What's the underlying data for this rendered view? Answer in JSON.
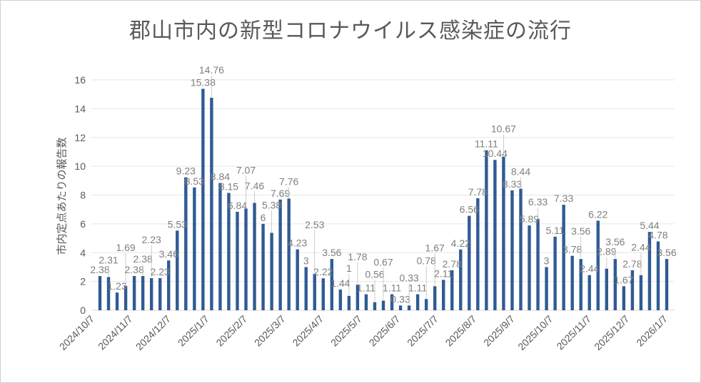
{
  "chart_data": {
    "type": "bar",
    "title": "郡山市内の新型コロナウイルス感染症の流行",
    "xlabel": "",
    "ylabel": "市内定点あたりの報告数",
    "ylim": [
      0,
      16
    ],
    "yticks": [
      0,
      2,
      4,
      6,
      8,
      10,
      12,
      14,
      16
    ],
    "grid": true,
    "bar_color": "#2f5b94",
    "xtick_labels": [
      "2024/10/7",
      "2024/11/7",
      "2024/12/7",
      "2025/1/7",
      "2025/2/7",
      "2025/3/7",
      "2025/4/7",
      "2025/5/7",
      "2025/6/7",
      "2025/7/7",
      "2025/8/7",
      "2025/9/7",
      "2025/10/7",
      "2025/11/7",
      "2025/12/7",
      "2026/1/7"
    ],
    "values": [
      2.38,
      2.31,
      1.23,
      1.69,
      2.38,
      2.38,
      2.23,
      2.23,
      3.46,
      5.53,
      9.23,
      8.53,
      15.38,
      14.76,
      8.84,
      8.15,
      6.84,
      7.07,
      7.46,
      6,
      5.38,
      7.69,
      7.76,
      4.23,
      3,
      2.53,
      2.22,
      3.56,
      1.44,
      1,
      1.78,
      1.11,
      0.56,
      0.67,
      1.11,
      0.33,
      0.33,
      1.11,
      0.78,
      1.67,
      2.11,
      2.78,
      4.22,
      6.56,
      7.78,
      11.11,
      10.44,
      10.67,
      8.33,
      8.44,
      5.89,
      6.33,
      3,
      5.11,
      7.33,
      3.78,
      3.56,
      2.44,
      6.22,
      2.89,
      3.56,
      1.67,
      2.78,
      2.44,
      5.44,
      4.78,
      3.56
    ]
  }
}
